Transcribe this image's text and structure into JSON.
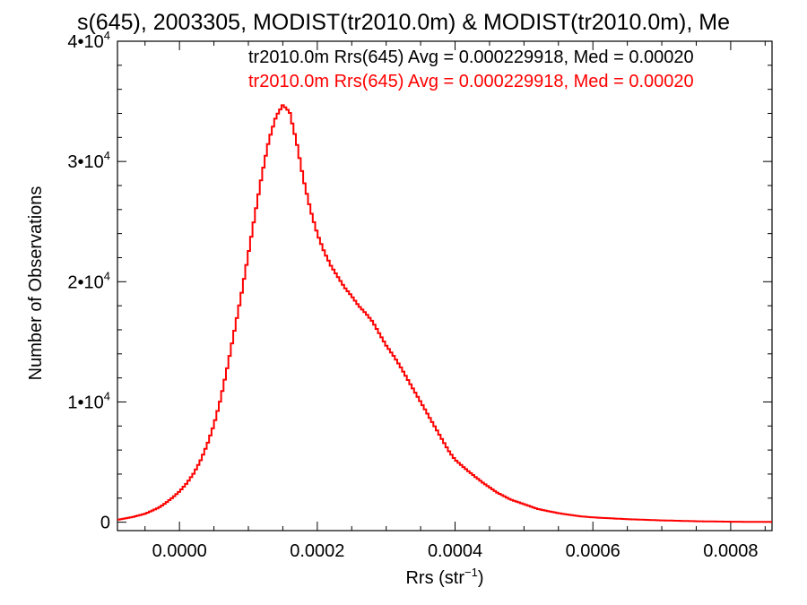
{
  "chart_data": {
    "type": "line",
    "title": "s(645), 2003305, MODIST(tr2010.0m) & MODIST(tr2010.0m), Me",
    "xlabel_main": "Rrs (str",
    "xlabel_sup": "−1",
    "xlabel_close": ")",
    "ylabel": "Number of Observations",
    "xlim": [
      -9e-05,
      0.00086
    ],
    "ylim": [
      -700,
      40000
    ],
    "x_ticks": [
      0.0,
      0.0002,
      0.0004,
      0.0006,
      0.0008
    ],
    "x_tick_labels": [
      "0.0000",
      "0.0002",
      "0.0004",
      "0.0006",
      "0.0008"
    ],
    "y_ticks": [
      {
        "value": 0,
        "mantissa": "0",
        "exponent": ""
      },
      {
        "value": 10000,
        "mantissa": "1•10",
        "exponent": "4"
      },
      {
        "value": 20000,
        "mantissa": "2•10",
        "exponent": "4"
      },
      {
        "value": 30000,
        "mantissa": "3•10",
        "exponent": "4"
      },
      {
        "value": 40000,
        "mantissa": "4•10",
        "exponent": "4"
      }
    ],
    "legend": [
      {
        "text": "tr2010.0m Rrs(645) Avg = 0.000229918, Med = 0.00020",
        "color": "#000000"
      },
      {
        "text": "tr2010.0m Rrs(645) Avg = 0.000229918, Med = 0.00020",
        "color": "#ff0000"
      }
    ],
    "series": [
      {
        "color": "#ff0000",
        "x": [
          -9e-05,
          -8e-05,
          -7e-05,
          -6e-05,
          -5e-05,
          -4e-05,
          -3e-05,
          -2e-05,
          -1e-05,
          0.0,
          1e-05,
          2e-05,
          3e-05,
          4e-05,
          5e-05,
          6e-05,
          7e-05,
          8e-05,
          9e-05,
          0.0001,
          0.00011,
          0.00012,
          0.00013,
          0.00014,
          0.00015,
          0.00016,
          0.00017,
          0.00018,
          0.00019,
          0.0002,
          0.00021,
          0.00022,
          0.00023,
          0.00024,
          0.00025,
          0.00026,
          0.00027,
          0.00028,
          0.00029,
          0.0003,
          0.00031,
          0.00032,
          0.00033,
          0.00034,
          0.00035,
          0.00036,
          0.00037,
          0.00038,
          0.00039,
          0.0004,
          0.00042,
          0.00044,
          0.00046,
          0.00048,
          0.0005,
          0.00052,
          0.00055,
          0.00058,
          0.0006,
          0.00065,
          0.0007,
          0.00075,
          0.0008,
          0.00086
        ],
        "y": [
          200,
          300,
          400,
          550,
          700,
          950,
          1200,
          1600,
          2050,
          2550,
          3200,
          4000,
          5050,
          6400,
          8100,
          10300,
          13000,
          16000,
          19000,
          22300,
          25700,
          29000,
          31800,
          33700,
          34700,
          34100,
          31600,
          28500,
          26000,
          24000,
          22500,
          21300,
          20400,
          19500,
          18800,
          18000,
          17400,
          16700,
          15700,
          14700,
          13900,
          13000,
          12000,
          11000,
          10000,
          9000,
          8000,
          7000,
          6000,
          5200,
          4200,
          3300,
          2500,
          1900,
          1500,
          1100,
          750,
          500,
          400,
          250,
          150,
          80,
          40,
          20
        ]
      }
    ]
  }
}
